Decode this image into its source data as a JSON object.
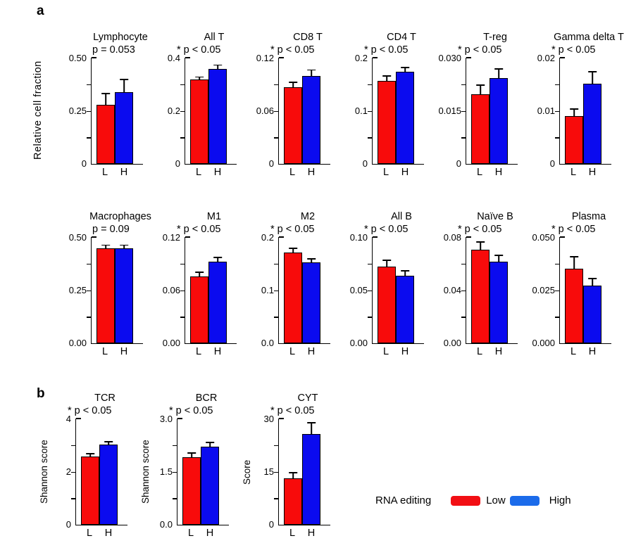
{
  "panels": {
    "a_label": "a",
    "b_label": "b"
  },
  "row1_ylabel": "Relative cell fraction",
  "x_categories": [
    "L",
    "H"
  ],
  "colors": {
    "bar_low": "#F80B0B",
    "bar_high": "#0B0BEF",
    "legend_low": "#F20F14",
    "legend_high": "#1B6BEA"
  },
  "legend": {
    "title": "RNA editing",
    "low_label": "Low",
    "high_label": "High"
  },
  "chart_data": [
    {
      "type": "bar",
      "panel": "a",
      "row": 1,
      "title": "Lymphocyte",
      "significance": "p = 0.053",
      "starred": false,
      "ylabel": null,
      "ymax": 0.5,
      "yticks": [
        "0.50",
        "0.25",
        "0"
      ],
      "categories": [
        "L",
        "H"
      ],
      "values": [
        0.275,
        0.335
      ],
      "error_to": [
        0.335,
        0.4
      ]
    },
    {
      "type": "bar",
      "panel": "a",
      "row": 1,
      "title": "All T",
      "significance": "* p < 0.05",
      "starred": true,
      "ylabel": null,
      "ymax": 0.4,
      "yticks": [
        "0.4",
        "0.2",
        "0"
      ],
      "categories": [
        "L",
        "H"
      ],
      "values": [
        0.315,
        0.355
      ],
      "error_to": [
        0.33,
        0.375
      ]
    },
    {
      "type": "bar",
      "panel": "a",
      "row": 1,
      "title": "CD8 T",
      "significance": "* p < 0.05",
      "starred": true,
      "ylabel": null,
      "ymax": 0.12,
      "yticks": [
        "0.12",
        "0.06",
        "0"
      ],
      "categories": [
        "L",
        "H"
      ],
      "values": [
        0.086,
        0.099
      ],
      "error_to": [
        0.093,
        0.107
      ]
    },
    {
      "type": "bar",
      "panel": "a",
      "row": 1,
      "title": "CD4 T",
      "significance": "* p < 0.05",
      "starred": true,
      "ylabel": null,
      "ymax": 0.2,
      "yticks": [
        "0.2",
        "0.1",
        "0"
      ],
      "categories": [
        "L",
        "H"
      ],
      "values": [
        0.155,
        0.172
      ],
      "error_to": [
        0.167,
        0.183
      ]
    },
    {
      "type": "bar",
      "panel": "a",
      "row": 1,
      "title": "T-reg",
      "significance": "* p < 0.05",
      "starred": true,
      "ylabel": null,
      "ymax": 0.03,
      "yticks": [
        "0.030",
        "0.015",
        "0"
      ],
      "categories": [
        "L",
        "H"
      ],
      "values": [
        0.0195,
        0.024
      ],
      "error_to": [
        0.0225,
        0.027
      ]
    },
    {
      "type": "bar",
      "panel": "a",
      "row": 1,
      "title": "Gamma delta T",
      "significance": "* p < 0.05",
      "starred": true,
      "ylabel": null,
      "ymax": 0.02,
      "yticks": [
        "0.02",
        "0.01",
        "0"
      ],
      "categories": [
        "L",
        "H"
      ],
      "values": [
        0.009,
        0.015
      ],
      "error_to": [
        0.0105,
        0.0175
      ]
    },
    {
      "type": "bar",
      "panel": "a",
      "row": 2,
      "title": "Macrophages",
      "significance": "p = 0.09",
      "starred": false,
      "ylabel": null,
      "ymax": 0.5,
      "yticks": [
        "0.50",
        "0.25",
        "0.00"
      ],
      "categories": [
        "L",
        "H"
      ],
      "values": [
        0.445,
        0.445
      ],
      "error_to": [
        0.465,
        0.465
      ]
    },
    {
      "type": "bar",
      "panel": "a",
      "row": 2,
      "title": "M1",
      "significance": "* p < 0.05",
      "starred": true,
      "ylabel": null,
      "ymax": 0.12,
      "yticks": [
        "0.12",
        "0.06",
        "0.00"
      ],
      "categories": [
        "L",
        "H"
      ],
      "values": [
        0.075,
        0.092
      ],
      "error_to": [
        0.081,
        0.098
      ]
    },
    {
      "type": "bar",
      "panel": "a",
      "row": 2,
      "title": "M2",
      "significance": "* p < 0.05",
      "starred": true,
      "ylabel": null,
      "ymax": 0.2,
      "yticks": [
        "0.2",
        "0.1",
        "0.0"
      ],
      "categories": [
        "L",
        "H"
      ],
      "values": [
        0.17,
        0.152
      ],
      "error_to": [
        0.18,
        0.161
      ]
    },
    {
      "type": "bar",
      "panel": "a",
      "row": 2,
      "title": "All B",
      "significance": "* p < 0.05",
      "starred": true,
      "ylabel": null,
      "ymax": 0.1,
      "yticks": [
        "0.10",
        "0.05",
        "0.00"
      ],
      "categories": [
        "L",
        "H"
      ],
      "values": [
        0.072,
        0.063
      ],
      "error_to": [
        0.079,
        0.069
      ]
    },
    {
      "type": "bar",
      "panel": "a",
      "row": 2,
      "title": "Naïve B",
      "significance": "* p < 0.05",
      "starred": true,
      "ylabel": null,
      "ymax": 0.08,
      "yticks": [
        "0.08",
        "0.04",
        "0.00"
      ],
      "categories": [
        "L",
        "H"
      ],
      "values": [
        0.07,
        0.061
      ],
      "error_to": [
        0.077,
        0.067
      ]
    },
    {
      "type": "bar",
      "panel": "a",
      "row": 2,
      "title": "Plasma",
      "significance": "* p < 0.05",
      "starred": true,
      "ylabel": null,
      "ymax": 0.05,
      "yticks": [
        "0.050",
        "0.025",
        "0.000"
      ],
      "categories": [
        "L",
        "H"
      ],
      "values": [
        0.035,
        0.027
      ],
      "error_to": [
        0.041,
        0.031
      ]
    },
    {
      "type": "bar",
      "panel": "b",
      "row": 3,
      "title": "TCR",
      "significance": "* p < 0.05",
      "starred": true,
      "ylabel": "Shannon score",
      "ymax": 4,
      "yticks": [
        "4",
        "2",
        "0"
      ],
      "categories": [
        "L",
        "H"
      ],
      "values": [
        2.55,
        3.0
      ],
      "error_to": [
        2.7,
        3.15
      ]
    },
    {
      "type": "bar",
      "panel": "b",
      "row": 3,
      "title": "BCR",
      "significance": "* p < 0.05",
      "starred": true,
      "ylabel": "Shannon score",
      "ymax": 3,
      "yticks": [
        "3.0",
        "1.5",
        "0.0"
      ],
      "categories": [
        "L",
        "H"
      ],
      "values": [
        1.9,
        2.2
      ],
      "error_to": [
        2.05,
        2.35
      ]
    },
    {
      "type": "bar",
      "panel": "b",
      "row": 3,
      "title": "CYT",
      "significance": "* p < 0.05",
      "starred": true,
      "ylabel": "Score",
      "ymax": 30,
      "yticks": [
        "30",
        "15",
        "0"
      ],
      "categories": [
        "L",
        "H"
      ],
      "values": [
        13,
        25.5
      ],
      "error_to": [
        15,
        29
      ]
    }
  ]
}
